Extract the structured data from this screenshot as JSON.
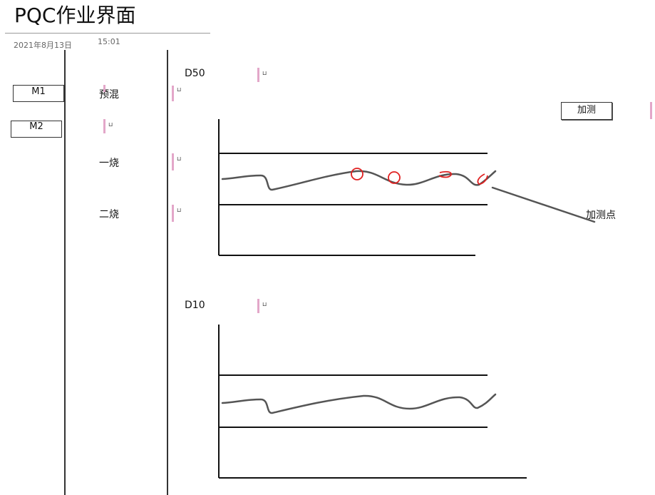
{
  "header": {
    "title": "PQC作业界面",
    "date": "2021年8月13日",
    "time": "15:01"
  },
  "machines": [
    {
      "label": "M1"
    },
    {
      "label": "M2"
    }
  ],
  "stages": [
    {
      "label": "预混",
      "placeholder": "⊔"
    },
    {
      "label": "一烧",
      "placeholder": "⊔"
    },
    {
      "label": "二烧",
      "placeholder": "⊔"
    }
  ],
  "m2_placeholder": "⊔",
  "charts": {
    "d50": {
      "label": "D50",
      "placeholder": "⊔"
    },
    "d10": {
      "label": "D10",
      "placeholder": "⊔"
    }
  },
  "actions": {
    "add_test_label": "加测",
    "add_test_point_label": "加测点"
  },
  "colors": {
    "line": "#555555",
    "axis": "#111111",
    "highlight": "#e02020",
    "marker": "#e3a7c9"
  }
}
